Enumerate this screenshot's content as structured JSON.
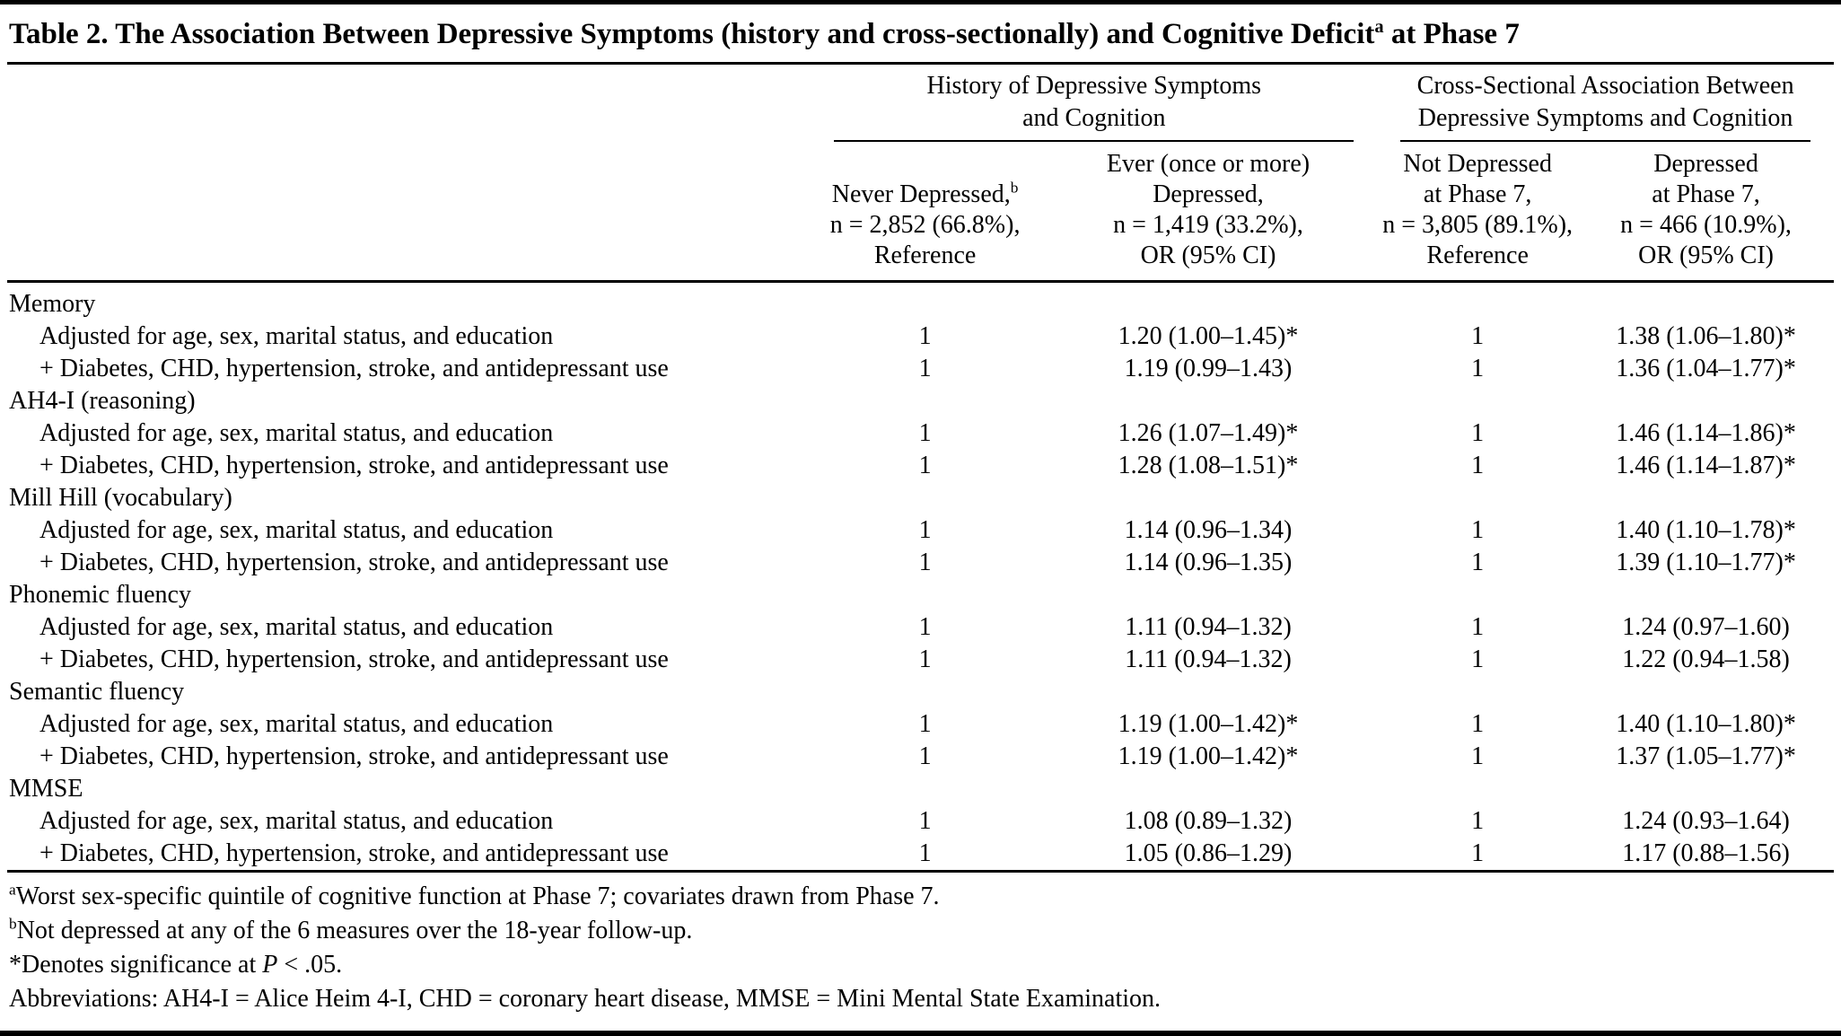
{
  "colors": {
    "text": "#000000",
    "background": "#ffffff",
    "rule": "#000000"
  },
  "title": {
    "text": "Table 2. The Association Between Depressive Symptoms (history and cross-sectionally) and Cognitive Deficit",
    "superscript": "a",
    "suffix": " at Phase 7"
  },
  "header": {
    "groups": [
      {
        "line1": "History of Depressive Symptoms",
        "line2": "and Cognition"
      },
      {
        "line1": "Cross-Sectional Association Between",
        "line2": "Depressive Symptoms and Cognition"
      }
    ],
    "columns": [
      {
        "line1": "Never Depressed,",
        "sup": "b",
        "line2": "n = 2,852 (66.8%),",
        "line3": "Reference"
      },
      {
        "line1": "Ever (once or more)",
        "line2": "Depressed,",
        "line3": "n = 1,419 (33.2%),",
        "line4": "OR (95% CI)"
      },
      {
        "line1": "Not Depressed",
        "line2": "at Phase 7,",
        "line3": "n = 3,805 (89.1%),",
        "line4": "Reference"
      },
      {
        "line1": "Depressed",
        "line2": "at Phase 7,",
        "line3": "n = 466 (10.9%),",
        "line4": "OR (95% CI)"
      }
    ]
  },
  "sections": [
    {
      "name": "Memory",
      "rows": [
        {
          "label": "Adjusted for age, sex, marital status, and education",
          "c1": "1",
          "c2": "1.20 (1.00–1.45)*",
          "c3": "1",
          "c4": "1.38 (1.06–1.80)*"
        },
        {
          "label": "+ Diabetes, CHD, hypertension, stroke, and antidepressant use",
          "c1": "1",
          "c2": "1.19 (0.99–1.43)",
          "c3": "1",
          "c4": "1.36 (1.04–1.77)*"
        }
      ]
    },
    {
      "name": "AH4-I (reasoning)",
      "rows": [
        {
          "label": "Adjusted for age, sex, marital status, and education",
          "c1": "1",
          "c2": "1.26 (1.07–1.49)*",
          "c3": "1",
          "c4": "1.46 (1.14–1.86)*"
        },
        {
          "label": "+ Diabetes, CHD, hypertension, stroke, and antidepressant use",
          "c1": "1",
          "c2": "1.28 (1.08–1.51)*",
          "c3": "1",
          "c4": "1.46 (1.14–1.87)*"
        }
      ]
    },
    {
      "name": "Mill Hill (vocabulary)",
      "rows": [
        {
          "label": "Adjusted for age, sex, marital status, and education",
          "c1": "1",
          "c2": "1.14 (0.96–1.34)",
          "c3": "1",
          "c4": "1.40 (1.10–1.78)*"
        },
        {
          "label": "+ Diabetes, CHD, hypertension, stroke, and antidepressant use",
          "c1": "1",
          "c2": "1.14 (0.96–1.35)",
          "c3": "1",
          "c4": "1.39 (1.10–1.77)*"
        }
      ]
    },
    {
      "name": "Phonemic fluency",
      "rows": [
        {
          "label": "Adjusted for age, sex, marital status, and education",
          "c1": "1",
          "c2": "1.11 (0.94–1.32)",
          "c3": "1",
          "c4": "1.24 (0.97–1.60)"
        },
        {
          "label": "+ Diabetes, CHD, hypertension, stroke, and antidepressant use",
          "c1": "1",
          "c2": "1.11 (0.94–1.32)",
          "c3": "1",
          "c4": "1.22 (0.94–1.58)"
        }
      ]
    },
    {
      "name": "Semantic fluency",
      "rows": [
        {
          "label": "Adjusted for age, sex, marital status, and education",
          "c1": "1",
          "c2": "1.19 (1.00–1.42)*",
          "c3": "1",
          "c4": "1.40 (1.10–1.80)*"
        },
        {
          "label": "+ Diabetes, CHD, hypertension, stroke, and antidepressant use",
          "c1": "1",
          "c2": "1.19 (1.00–1.42)*",
          "c3": "1",
          "c4": "1.37 (1.05–1.77)*"
        }
      ]
    },
    {
      "name": "MMSE",
      "rows": [
        {
          "label": "Adjusted for age, sex, marital status, and education",
          "c1": "1",
          "c2": "1.08 (0.89–1.32)",
          "c3": "1",
          "c4": "1.24 (0.93–1.64)"
        },
        {
          "label": "+ Diabetes, CHD, hypertension, stroke, and antidepressant use",
          "c1": "1",
          "c2": "1.05 (0.86–1.29)",
          "c3": "1",
          "c4": "1.17 (0.88–1.56)"
        }
      ]
    }
  ],
  "footnotes": {
    "a": {
      "sup": "a",
      "text": "Worst sex-specific quintile of cognitive function at Phase 7; covariates drawn from Phase 7."
    },
    "b": {
      "sup": "b",
      "text": "Not depressed at any of the 6 measures over the 18-year follow-up."
    },
    "significance": {
      "pre": "*Denotes significance at ",
      "italic": "P",
      "post": " < .05."
    },
    "abbreviations": {
      "text": "Abbreviations: AH4-I = Alice Heim 4-I, CHD = coronary heart disease, MMSE = Mini Mental State Examination."
    }
  }
}
